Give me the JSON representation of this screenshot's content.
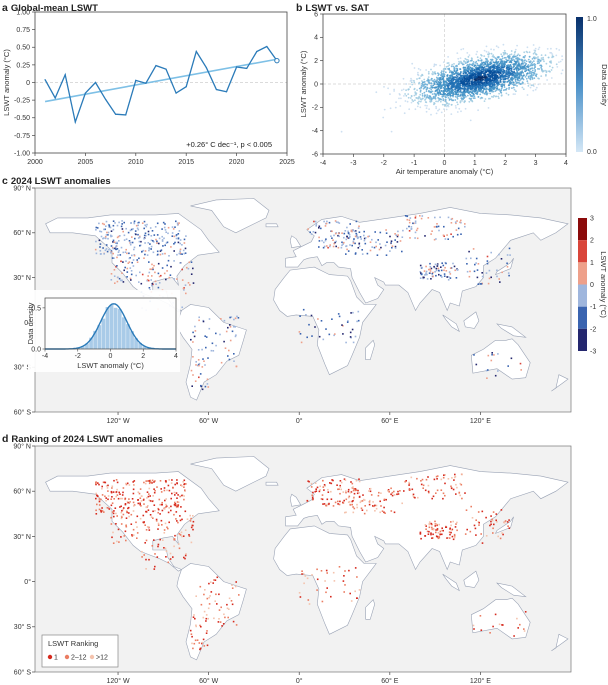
{
  "colors": {
    "lswt_line": "#2b7bb9",
    "trend_line": "#7ec0e6",
    "map_bg": "#f2f2f2",
    "land": "#ffffff",
    "coast": "#9aa3b5",
    "warm_dark": "#8b0a0a",
    "warm": "#d9453a",
    "warm_light": "#eea08a",
    "cool_light": "#9fb6dd",
    "cool": "#3a64b0",
    "cool_dark": "#24276e",
    "rank1": "#d62a1e",
    "rank2_12": "#eb7d62",
    "rank12plus": "#f4c3ad",
    "density_dark": "#08306b",
    "density_light": "#d4e7f6"
  },
  "panels": {
    "a": {
      "letter": "a",
      "title": "Global-mean LSWT"
    },
    "b": {
      "letter": "b",
      "title": "LSWT vs. SAT"
    },
    "c": {
      "letter": "c",
      "title": "2024 LSWT anomalies"
    },
    "d": {
      "letter": "d",
      "title": "Ranking of 2024 LSWT anomalies"
    }
  },
  "chart_data": [
    {
      "id": "a",
      "type": "line",
      "title": "Global-mean LSWT",
      "xlabel": "",
      "ylabel": "LSWT anomaly (°C)",
      "xlim": [
        2000,
        2025
      ],
      "ylim": [
        -1.0,
        1.0
      ],
      "xticks": [
        2000,
        2005,
        2010,
        2015,
        2020,
        2025
      ],
      "yticks": [
        "-1.00",
        "-0.75",
        "-0.50",
        "-0.25",
        "0",
        "0.25",
        "0.50",
        "0.75",
        "1.00"
      ],
      "series": [
        {
          "x": [
            2001,
            2002,
            2003,
            2004,
            2005,
            2006,
            2007,
            2008,
            2009,
            2010,
            2011,
            2012,
            2013,
            2014,
            2015,
            2016,
            2017,
            2018,
            2019,
            2020,
            2021,
            2022,
            2023,
            2024
          ],
          "values": [
            0.04,
            -0.22,
            0.11,
            -0.56,
            -0.15,
            0.0,
            -0.24,
            -0.45,
            -0.46,
            0.03,
            -0.01,
            0.24,
            0.19,
            -0.15,
            -0.06,
            0.44,
            0.21,
            -0.1,
            -0.13,
            0.22,
            0.2,
            0.44,
            0.51,
            0.31
          ]
        }
      ],
      "trend": {
        "x": [
          2001,
          2024
        ],
        "values": [
          -0.27,
          0.33
        ]
      },
      "annotation": "+0.26° C dec⁻¹, p < 0.005"
    },
    {
      "id": "b",
      "type": "scatter",
      "title": "LSWT vs. SAT",
      "xlabel": "Air temperature anomaly (°C)",
      "ylabel": "LSWT anomaly (°C)",
      "xlim": [
        -4,
        4
      ],
      "ylim": [
        -6,
        6
      ],
      "xticks": [
        "-4",
        "-3",
        "-2",
        "-1",
        "0",
        "1",
        "2",
        "3",
        "4"
      ],
      "yticks": [
        "-6",
        "-4",
        "-2",
        "0",
        "2",
        "4",
        "6"
      ],
      "colorbar": {
        "label": "Data density",
        "ticks": [
          "0.0",
          "1.0"
        ]
      }
    },
    {
      "id": "c",
      "type": "heatmap",
      "title": "2024 LSWT anomalies",
      "lat_ticks": [
        "90° N",
        "60° N",
        "30° N",
        "0°",
        "30° S",
        "60° S"
      ],
      "lon_ticks": [
        "120° W",
        "60° W",
        "0°",
        "60° E",
        "120° E"
      ],
      "colorbar": {
        "label": "LSWT anomaly (°C)",
        "ticks": [
          "3",
          "2",
          "1",
          "0",
          "-1",
          "-2",
          "-3"
        ]
      },
      "inset": {
        "type": "area",
        "xlabel": "LSWT anomaly (°C)",
        "ylabel": "Data density",
        "xticks": [
          "-4",
          "-2",
          "0",
          "2",
          "4"
        ],
        "yticks": [
          "0.0",
          "0.5"
        ]
      }
    },
    {
      "id": "d",
      "type": "heatmap",
      "title": "Ranking of 2024 LSWT anomalies",
      "lat_ticks": [
        "90° N",
        "60° N",
        "30° N",
        "0°",
        "30° S",
        "60° S"
      ],
      "lon_ticks": [
        "120° W",
        "60° W",
        "0°",
        "60° E",
        "120° E"
      ],
      "legend": {
        "title": "LSWT Ranking",
        "items": [
          "1",
          "2–12",
          ">12"
        ]
      }
    }
  ]
}
